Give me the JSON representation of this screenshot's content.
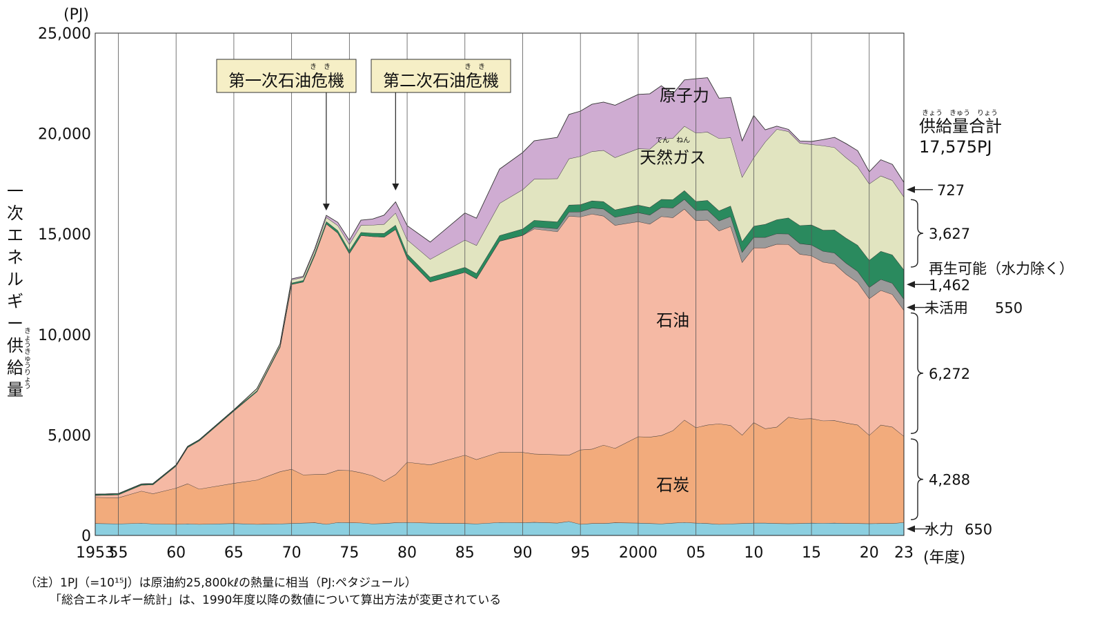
{
  "chart_data": {
    "type": "area",
    "unit_label": "(PJ)",
    "ylabel": "一次エネルギー供給量",
    "ylabel_ruby": "きょうきゅうりょう",
    "ylim": [
      0,
      25000
    ],
    "xlim": [
      1953,
      2023
    ],
    "y_ticks": [
      "0",
      "5,000",
      "10,000",
      "15,000",
      "20,000",
      "25,000"
    ],
    "x_ticks": [
      {
        "year": 1953,
        "label": "1953"
      },
      {
        "year": 1955,
        "label": "55"
      },
      {
        "year": 1960,
        "label": "60"
      },
      {
        "year": 1965,
        "label": "65"
      },
      {
        "year": 1970,
        "label": "70"
      },
      {
        "year": 1975,
        "label": "75"
      },
      {
        "year": 1980,
        "label": "80"
      },
      {
        "year": 1985,
        "label": "85"
      },
      {
        "year": 1990,
        "label": "90"
      },
      {
        "year": 1995,
        "label": "95"
      },
      {
        "year": 2000,
        "label": "2000"
      },
      {
        "year": 2005,
        "label": "05"
      },
      {
        "year": 2010,
        "label": "10"
      },
      {
        "year": 2015,
        "label": "15"
      },
      {
        "year": 2020,
        "label": "20"
      },
      {
        "year": 2023,
        "label": "23"
      }
    ],
    "x_unit_label": "(年度)",
    "x": [
      1953,
      1955,
      1957,
      1958,
      1960,
      1961,
      1962,
      1965,
      1967,
      1969,
      1970,
      1971,
      1972,
      1973,
      1974,
      1975,
      1976,
      1977,
      1978,
      1979,
      1980,
      1982,
      1985,
      1986,
      1988,
      1990,
      1991,
      1993,
      1994,
      1995,
      1996,
      1997,
      1998,
      2000,
      2001,
      2002,
      2003,
      2004,
      2005,
      2006,
      2007,
      2008,
      2009,
      2010,
      2011,
      2012,
      2013,
      2014,
      2015,
      2016,
      2017,
      2018,
      2019,
      2020,
      2021,
      2022,
      2023
    ],
    "series": [
      {
        "name": "水力",
        "color": "#8ccfe0",
        "values": [
          600,
          580,
          610,
          580,
          560,
          580,
          560,
          600,
          560,
          580,
          600,
          620,
          640,
          560,
          650,
          640,
          630,
          580,
          600,
          640,
          650,
          620,
          600,
          580,
          650,
          640,
          660,
          620,
          700,
          560,
          600,
          600,
          640,
          620,
          600,
          580,
          620,
          650,
          620,
          600,
          560,
          580,
          600,
          620,
          620,
          600,
          590,
          600,
          620,
          610,
          620,
          600,
          600,
          590,
          600,
          600,
          650
        ]
      },
      {
        "name": "石炭",
        "color": "#f2ab7c",
        "values": [
          1300,
          1300,
          1600,
          1500,
          1800,
          2000,
          1750,
          2000,
          2200,
          2600,
          2700,
          2400,
          2400,
          2500,
          2600,
          2600,
          2500,
          2400,
          2100,
          2400,
          3000,
          2900,
          3400,
          3200,
          3500,
          3500,
          3400,
          3400,
          3300,
          3700,
          3700,
          3900,
          3700,
          4300,
          4300,
          4400,
          4600,
          5100,
          4750,
          4900,
          5000,
          4900,
          4400,
          5000,
          4700,
          4800,
          5300,
          5200,
          5200,
          5100,
          5100,
          5000,
          4900,
          4400,
          4900,
          4800,
          4288
        ]
      },
      {
        "name": "石油",
        "color": "#f5b9a4",
        "values": [
          100,
          150,
          300,
          450,
          1100,
          1800,
          2400,
          3600,
          4400,
          6200,
          9200,
          9600,
          10900,
          12450,
          11800,
          10800,
          11800,
          11900,
          12150,
          12200,
          10150,
          9100,
          9100,
          9000,
          10500,
          10800,
          11200,
          11100,
          11900,
          11600,
          11700,
          11400,
          11100,
          10700,
          10600,
          10900,
          10600,
          10500,
          10300,
          10200,
          9600,
          9900,
          8600,
          8700,
          9000,
          9100,
          8600,
          8200,
          8100,
          7900,
          7800,
          7400,
          7100,
          6800,
          6700,
          6600,
          6272
        ]
      },
      {
        "name": "未活用",
        "color": "#9a9a9a",
        "values": [
          0,
          0,
          0,
          0,
          0,
          0,
          0,
          0,
          0,
          0,
          0,
          0,
          0,
          0,
          0,
          0,
          0,
          0,
          0,
          0,
          0,
          0,
          0,
          0,
          0,
          0,
          100,
          150,
          200,
          250,
          300,
          350,
          400,
          450,
          450,
          450,
          480,
          480,
          500,
          500,
          500,
          500,
          500,
          520,
          520,
          520,
          520,
          530,
          540,
          540,
          540,
          550,
          550,
          560,
          550,
          550,
          550
        ]
      },
      {
        "name": "再生可能(水力除く)",
        "color": "#2a8a5e",
        "values": [
          50,
          50,
          50,
          50,
          50,
          50,
          50,
          50,
          50,
          60,
          70,
          80,
          100,
          120,
          130,
          150,
          160,
          170,
          190,
          210,
          220,
          230,
          250,
          260,
          280,
          320,
          330,
          340,
          350,
          360,
          360,
          370,
          370,
          380,
          380,
          400,
          420,
          440,
          460,
          480,
          500,
          520,
          540,
          560,
          650,
          700,
          800,
          900,
          1000,
          1050,
          1150,
          1250,
          1300,
          1350,
          1400,
          1420,
          1462
        ]
      },
      {
        "name": "天然ガス",
        "color": "#e1e4c0",
        "values": [
          0,
          0,
          0,
          0,
          0,
          0,
          0,
          0,
          100,
          100,
          150,
          150,
          150,
          200,
          250,
          300,
          350,
          400,
          450,
          600,
          700,
          900,
          1350,
          1400,
          1600,
          1950,
          2050,
          2150,
          2300,
          2400,
          2450,
          2550,
          2600,
          2800,
          2900,
          3000,
          3050,
          3200,
          3400,
          3400,
          3600,
          3400,
          3200,
          3400,
          4100,
          4500,
          4300,
          4100,
          4000,
          4200,
          4100,
          4000,
          3900,
          3800,
          3750,
          3700,
          3627
        ]
      },
      {
        "name": "原子力",
        "color": "#cfacd2",
        "values": [
          0,
          0,
          0,
          0,
          0,
          0,
          0,
          0,
          0,
          0,
          50,
          50,
          80,
          100,
          150,
          200,
          250,
          300,
          450,
          550,
          700,
          850,
          1350,
          1350,
          1700,
          1850,
          1900,
          2050,
          2200,
          2250,
          2350,
          2400,
          2600,
          2700,
          2750,
          2650,
          2200,
          2300,
          2700,
          2700,
          2000,
          2000,
          1800,
          2100,
          600,
          150,
          100,
          100,
          150,
          300,
          500,
          700,
          800,
          600,
          800,
          800,
          727
        ]
      }
    ],
    "area_labels": [
      {
        "series": "原子力",
        "text": "原子力",
        "year": 2004,
        "value": 21900
      },
      {
        "series": "天然ガス",
        "text": "天然ガス",
        "ruby": "てん　ねん",
        "year": 2003,
        "value": 18800
      },
      {
        "series": "石油",
        "text": "石油",
        "year": 2003,
        "value": 10700
      },
      {
        "series": "石炭",
        "text": "石炭",
        "year": 2003,
        "value": 2500
      }
    ],
    "annotations": [
      {
        "text": "第一次石油危機",
        "ruby": "き　き",
        "year": 1973,
        "value": 16100
      },
      {
        "text": "第二次石油危機",
        "ruby": "き　き",
        "year": 1979,
        "value": 17100
      }
    ],
    "total_label": "供給量合計",
    "total_ruby": "きょう　きゅう　りょう",
    "total_value": "17,575PJ",
    "right_labels": [
      {
        "series": "原子力",
        "value_text": "727",
        "arrow": true
      },
      {
        "series": "天然ガス",
        "value_text": "3,627",
        "bracket": true
      },
      {
        "series": "再生可能(水力除く)",
        "name_text": "再生可能（水力除く）",
        "value_text": "1,462",
        "arrow": true
      },
      {
        "series": "未活用",
        "name_text": "未活用",
        "value_text": "550",
        "arrow": true
      },
      {
        "series": "石油",
        "value_text": "6,272",
        "bracket": true
      },
      {
        "series": "石炭",
        "value_text": "4,288",
        "bracket": true
      },
      {
        "series": "水力",
        "name_text": "水力",
        "value_text": "650",
        "arrow": true
      }
    ],
    "notes": [
      "（注）1PJ（=10¹⁵J）は原油約25,800kℓの熱量に相当（PJ:ペタジュール）",
      "「総合エネルギー統計」は、1990年度以降の数値について算出方法が変更されている"
    ]
  }
}
